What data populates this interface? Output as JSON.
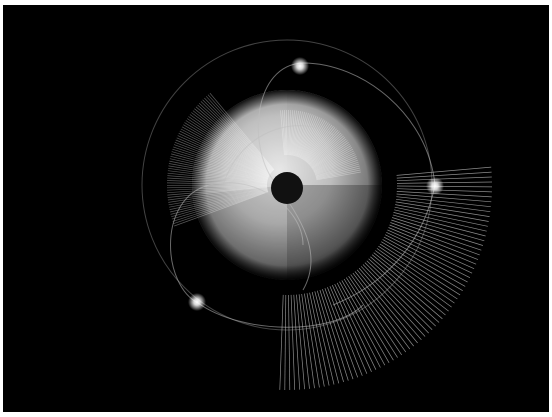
{
  "scene": {
    "kind": "abstract-generative-artwork",
    "background_color": "#000000",
    "frame_color": "#ffffff",
    "sphere": {
      "light_color": "#d9d9d9",
      "dark_color": "#1a1a1a",
      "pupil_color": "#111111"
    },
    "orbit_color": "#bfbfbf",
    "glow_color": "#ffffff",
    "glow_count": 3,
    "fan_count": 3
  }
}
